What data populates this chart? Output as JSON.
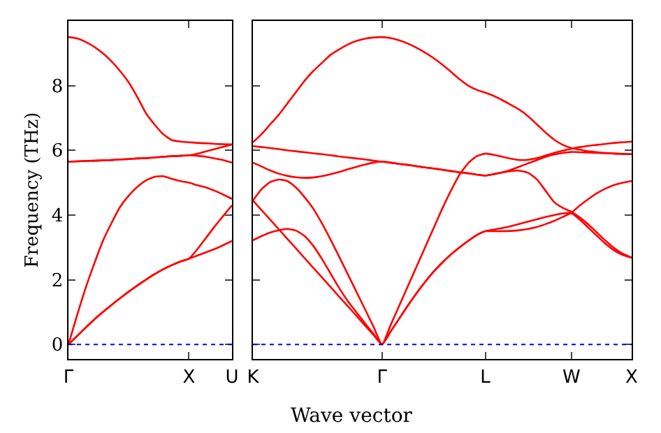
{
  "chart_data": [
    {
      "type": "line",
      "ylabel": "Frequency (THz)",
      "categories": [
        "Γ",
        null,
        null,
        null,
        null,
        null,
        null,
        null,
        null,
        null,
        null,
        null,
        null,
        null,
        "X",
        null,
        null,
        null,
        null,
        "U"
      ],
      "ylim": [
        -0.45,
        10
      ],
      "yticks": [
        0,
        2,
        4,
        6,
        8
      ],
      "grid": false,
      "line_style": "solid",
      "ref_lines": [
        {
          "axis": "y",
          "value": 0,
          "color": "#0000ff",
          "line_style": "dotted"
        }
      ],
      "series": [
        {
          "color": "#ff0000",
          "values": [
            0,
            0.26,
            0.52,
            0.77,
            1.0,
            1.22,
            1.43,
            1.63,
            1.82,
            2.0,
            2.17,
            2.32,
            2.45,
            2.56,
            2.65,
            2.75,
            2.85,
            2.95,
            3.07,
            3.2
          ]
        },
        {
          "color": "#ff0000",
          "values": [
            0,
            0.26,
            0.52,
            0.77,
            1.0,
            1.22,
            1.43,
            1.63,
            1.82,
            2.0,
            2.17,
            2.32,
            2.45,
            2.56,
            2.65,
            2.95,
            3.3,
            3.65,
            3.98,
            4.3
          ]
        },
        {
          "color": "#ff0000",
          "values": [
            0,
            0.9,
            1.75,
            2.5,
            3.2,
            3.75,
            4.25,
            4.6,
            4.87,
            5.07,
            5.18,
            5.2,
            5.12,
            5.05,
            5.0,
            4.92,
            4.85,
            4.75,
            4.63,
            4.5
          ]
        },
        {
          "color": "#ff0000",
          "values": [
            5.65,
            5.66,
            5.67,
            5.68,
            5.69,
            5.7,
            5.72,
            5.73,
            5.75,
            5.76,
            5.78,
            5.8,
            5.82,
            5.83,
            5.85,
            5.83,
            5.8,
            5.75,
            5.7,
            5.62
          ]
        },
        {
          "color": "#ff0000",
          "values": [
            5.65,
            5.66,
            5.67,
            5.68,
            5.69,
            5.7,
            5.72,
            5.73,
            5.75,
            5.76,
            5.78,
            5.8,
            5.82,
            5.83,
            5.85,
            5.9,
            5.97,
            6.04,
            6.11,
            6.18
          ]
        },
        {
          "color": "#ff0000",
          "values": [
            9.5,
            9.46,
            9.35,
            9.2,
            9.0,
            8.75,
            8.45,
            8.1,
            7.65,
            7.15,
            6.8,
            6.5,
            6.32,
            6.27,
            6.25,
            6.23,
            6.22,
            6.2,
            6.19,
            6.18
          ]
        }
      ]
    },
    {
      "type": "line",
      "xlabel": "Wave vector",
      "categories": [
        "K",
        null,
        null,
        null,
        null,
        null,
        null,
        null,
        null,
        null,
        null,
        null,
        null,
        null,
        null,
        "Γ",
        null,
        null,
        null,
        null,
        null,
        null,
        null,
        null,
        null,
        null,
        null,
        "L",
        null,
        null,
        null,
        null,
        null,
        null,
        null,
        null,
        null,
        "W",
        null,
        null,
        null,
        null,
        null,
        null,
        "X"
      ],
      "ylim": [
        -0.45,
        10
      ],
      "yticks": [
        0,
        2,
        4,
        6,
        8
      ],
      "tick_labels": "x",
      "grid": false,
      "line_style": "solid",
      "ref_lines": [
        {
          "axis": "y",
          "value": 0,
          "color": "#0000ff",
          "line_style": "dotted"
        }
      ],
      "series": [
        {
          "color": "#ff0000",
          "values": [
            6.25,
            6.5,
            6.8,
            7.1,
            7.45,
            7.8,
            8.15,
            8.45,
            8.7,
            8.95,
            9.12,
            9.27,
            9.38,
            9.45,
            9.49,
            9.5,
            9.47,
            9.4,
            9.3,
            9.17,
            9.02,
            8.85,
            8.65,
            8.43,
            8.2,
            8.0,
            7.87,
            7.78,
            7.68,
            7.55,
            7.4,
            7.25,
            7.05,
            6.8,
            6.55,
            6.33,
            6.17,
            6.07,
            6.02,
            5.97,
            5.94,
            5.92,
            5.9,
            5.89,
            5.88
          ]
        },
        {
          "color": "#ff0000",
          "values": [
            6.13,
            6.1,
            6.07,
            6.04,
            6.0,
            5.97,
            5.94,
            5.91,
            5.88,
            5.85,
            5.81,
            5.78,
            5.75,
            5.72,
            5.68,
            5.65,
            5.62,
            5.58,
            5.55,
            5.51,
            5.47,
            5.44,
            5.4,
            5.36,
            5.32,
            5.29,
            5.25,
            5.22,
            5.26,
            5.32,
            5.4,
            5.5,
            5.6,
            5.7,
            5.8,
            5.87,
            5.92,
            5.95,
            5.94,
            5.93,
            5.92,
            5.91,
            5.9,
            5.89,
            5.88
          ]
        },
        {
          "color": "#ff0000",
          "values": [
            5.62,
            5.5,
            5.38,
            5.28,
            5.21,
            5.17,
            5.15,
            5.16,
            5.2,
            5.26,
            5.33,
            5.41,
            5.49,
            5.56,
            5.62,
            5.65,
            5.62,
            5.58,
            5.55,
            5.51,
            5.47,
            5.44,
            5.4,
            5.36,
            5.32,
            5.29,
            5.25,
            5.22,
            5.27,
            5.32,
            5.36,
            5.37,
            5.3,
            5.1,
            4.75,
            4.4,
            4.22,
            4.1,
            3.92,
            3.7,
            3.45,
            3.2,
            2.97,
            2.8,
            2.68
          ]
        },
        {
          "color": "#ff0000",
          "values": [
            4.45,
            4.8,
            5.02,
            5.1,
            5.05,
            4.85,
            4.55,
            4.2,
            3.75,
            3.25,
            2.72,
            2.18,
            1.64,
            1.1,
            0.55,
            0,
            0.6,
            1.2,
            1.8,
            2.4,
            3.0,
            3.6,
            4.2,
            4.75,
            5.25,
            5.6,
            5.82,
            5.9,
            5.86,
            5.8,
            5.74,
            5.7,
            5.71,
            5.76,
            5.84,
            5.92,
            5.99,
            6.05,
            6.1,
            6.14,
            6.17,
            6.2,
            6.23,
            6.25,
            6.27
          ]
        },
        {
          "color": "#ff0000",
          "values": [
            4.45,
            4.15,
            3.86,
            3.56,
            3.26,
            2.97,
            2.67,
            2.37,
            2.08,
            1.78,
            1.48,
            1.19,
            0.89,
            0.59,
            0.3,
            0,
            0.4,
            0.8,
            1.2,
            1.58,
            1.93,
            2.25,
            2.53,
            2.78,
            3.0,
            3.2,
            3.38,
            3.5,
            3.55,
            3.6,
            3.66,
            3.73,
            3.8,
            3.87,
            3.94,
            4.0,
            4.05,
            4.08,
            4.3,
            4.5,
            4.68,
            4.82,
            4.93,
            5.0,
            5.05
          ]
        },
        {
          "color": "#ff0000",
          "values": [
            3.22,
            3.35,
            3.46,
            3.53,
            3.57,
            3.52,
            3.35,
            3.05,
            2.65,
            2.2,
            1.75,
            1.35,
            1.0,
            0.66,
            0.33,
            0,
            0.4,
            0.8,
            1.2,
            1.58,
            1.93,
            2.25,
            2.53,
            2.78,
            3.0,
            3.2,
            3.38,
            3.5,
            3.5,
            3.5,
            3.51,
            3.53,
            3.57,
            3.63,
            3.72,
            3.82,
            3.94,
            4.05,
            3.85,
            3.6,
            3.35,
            3.1,
            2.9,
            2.76,
            2.68
          ]
        }
      ]
    }
  ]
}
